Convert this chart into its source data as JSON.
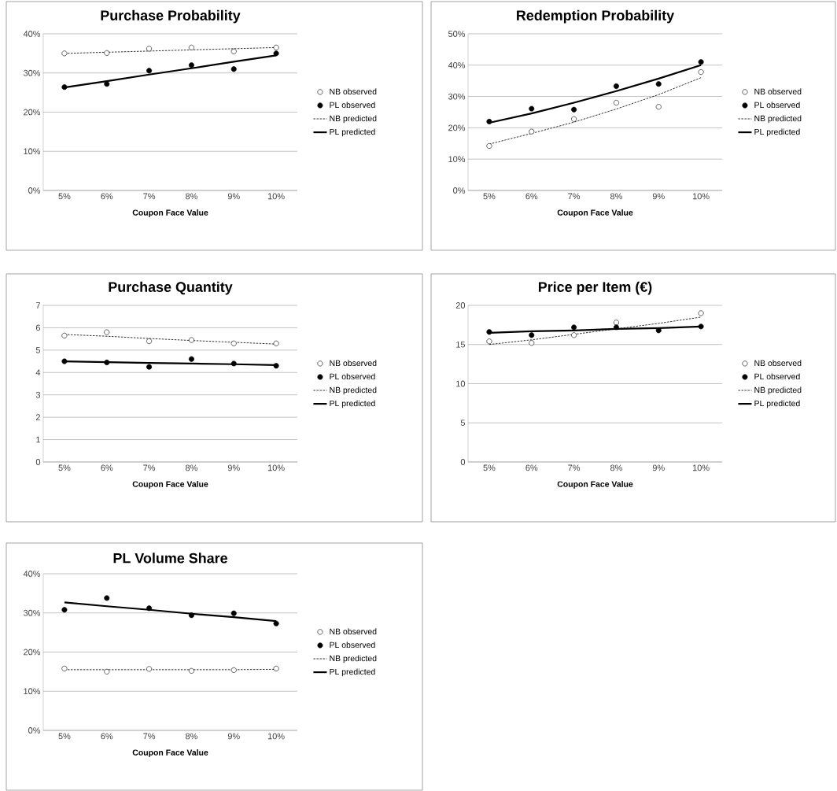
{
  "chart_data": [
    {
      "type": "line",
      "title": "Purchase Probability",
      "xlabel": "Coupon Face Value",
      "categories": [
        "5%",
        "6%",
        "7%",
        "8%",
        "9%",
        "10%"
      ],
      "ylim": [
        0,
        40
      ],
      "yticks": [
        {
          "value": 0,
          "label": "0%"
        },
        {
          "value": 10,
          "label": "10%"
        },
        {
          "value": 20,
          "label": "20%"
        },
        {
          "value": 30,
          "label": "30%"
        },
        {
          "value": 40,
          "label": "40%"
        }
      ],
      "grid": "y",
      "legend": "right",
      "series": [
        {
          "name": "NB observed",
          "type": "scatter",
          "marker": "circle",
          "color": "#ffffff",
          "values": [
            35,
            35.1,
            36.2,
            36.5,
            35.5,
            36.5
          ]
        },
        {
          "name": "PL observed",
          "type": "scatter",
          "marker": "circle",
          "color": "#000000",
          "values": [
            26.4,
            27.2,
            30.6,
            32,
            31,
            35
          ]
        },
        {
          "name": "NB predicted",
          "line_style": "dashed",
          "color": "#000000",
          "values": [
            35,
            35.3,
            35.6,
            35.9,
            36.2,
            36.5
          ]
        },
        {
          "name": "PL predicted",
          "line_style": "solid",
          "color": "#000000",
          "values": [
            26.3,
            27.9,
            29.6,
            31.2,
            32.9,
            34.5
          ]
        }
      ]
    },
    {
      "type": "line",
      "title": "Redemption Probability",
      "xlabel": "Coupon Face Value",
      "categories": [
        "5%",
        "6%",
        "7%",
        "8%",
        "9%",
        "10%"
      ],
      "ylim": [
        0,
        50
      ],
      "yticks": [
        {
          "value": 0,
          "label": "0%"
        },
        {
          "value": 10,
          "label": "10%"
        },
        {
          "value": 20,
          "label": "20%"
        },
        {
          "value": 30,
          "label": "30%"
        },
        {
          "value": 40,
          "label": "40%"
        },
        {
          "value": 50,
          "label": "50%"
        }
      ],
      "grid": "y",
      "legend": "right",
      "series": [
        {
          "name": "NB observed",
          "type": "scatter",
          "marker": "circle",
          "color": "#ffffff",
          "values": [
            14.2,
            18.8,
            22.8,
            28,
            26.7,
            37.8
          ]
        },
        {
          "name": "PL observed",
          "type": "scatter",
          "marker": "circle",
          "color": "#000000",
          "values": [
            22,
            26.1,
            25.8,
            33.3,
            34,
            41
          ]
        },
        {
          "name": "NB predicted",
          "line_style": "dashed",
          "color": "#000000",
          "values": [
            14.8,
            18.2,
            21.8,
            26,
            30.6,
            36
          ]
        },
        {
          "name": "PL predicted",
          "line_style": "solid",
          "color": "#000000",
          "values": [
            21.6,
            24.6,
            28,
            31.7,
            35.7,
            40
          ]
        }
      ]
    },
    {
      "type": "line",
      "title": "Purchase Quantity",
      "xlabel": "Coupon Face Value",
      "categories": [
        "5%",
        "6%",
        "7%",
        "8%",
        "9%",
        "10%"
      ],
      "ylim": [
        0,
        7
      ],
      "yticks": [
        0,
        1,
        2,
        3,
        4,
        5,
        6,
        7
      ],
      "grid": "y",
      "legend": "right",
      "series": [
        {
          "name": "NB observed",
          "type": "scatter",
          "marker": "circle",
          "color": "#ffffff",
          "values": [
            5.65,
            5.8,
            5.4,
            5.45,
            5.3,
            5.3
          ]
        },
        {
          "name": "PL observed",
          "type": "scatter",
          "marker": "circle",
          "color": "#000000",
          "values": [
            4.5,
            4.45,
            4.25,
            4.6,
            4.4,
            4.3
          ]
        },
        {
          "name": "NB predicted",
          "line_style": "dashed",
          "color": "#000000",
          "values": [
            5.7,
            5.62,
            5.52,
            5.43,
            5.35,
            5.27
          ]
        },
        {
          "name": "PL predicted",
          "line_style": "solid",
          "color": "#000000",
          "values": [
            4.5,
            4.46,
            4.43,
            4.4,
            4.37,
            4.33
          ]
        }
      ]
    },
    {
      "type": "line",
      "title": "Price per Item (€)",
      "xlabel": "Coupon Face Value",
      "categories": [
        "5%",
        "6%",
        "7%",
        "8%",
        "9%",
        "10%"
      ],
      "ylim": [
        0,
        20
      ],
      "yticks": [
        0,
        5,
        10,
        15,
        20
      ],
      "grid": "y",
      "legend": "right",
      "series": [
        {
          "name": "NB observed",
          "type": "scatter",
          "marker": "circle",
          "color": "#ffffff",
          "values": [
            15.4,
            15.2,
            16.2,
            17.8,
            null,
            19
          ]
        },
        {
          "name": "PL observed",
          "type": "scatter",
          "marker": "circle",
          "color": "#000000",
          "values": [
            16.6,
            16.2,
            17.2,
            17.2,
            16.8,
            17.3
          ]
        },
        {
          "name": "NB predicted",
          "line_style": "dashed",
          "color": "#000000",
          "values": [
            15,
            15.6,
            16.3,
            17,
            17.7,
            18.5
          ]
        },
        {
          "name": "PL predicted",
          "line_style": "solid",
          "color": "#000000",
          "values": [
            16.5,
            16.7,
            16.8,
            17,
            17.1,
            17.3
          ]
        }
      ]
    },
    {
      "type": "line",
      "title": "PL Volume Share",
      "xlabel": "Coupon Face Value",
      "categories": [
        "5%",
        "6%",
        "7%",
        "8%",
        "9%",
        "10%"
      ],
      "ylim": [
        0,
        40
      ],
      "yticks": [
        {
          "value": 0,
          "label": "0%"
        },
        {
          "value": 10,
          "label": "10%"
        },
        {
          "value": 20,
          "label": "20%"
        },
        {
          "value": 30,
          "label": "30%"
        },
        {
          "value": 40,
          "label": "40%"
        }
      ],
      "grid": "y",
      "legend": "right",
      "series": [
        {
          "name": "NB observed",
          "type": "scatter",
          "marker": "circle",
          "color": "#ffffff",
          "values": [
            15.8,
            15,
            15.7,
            15.2,
            15.4,
            15.8
          ]
        },
        {
          "name": "PL observed",
          "type": "scatter",
          "marker": "circle",
          "color": "#000000",
          "values": [
            30.8,
            33.8,
            31.2,
            29.4,
            29.9,
            27.3
          ]
        },
        {
          "name": "NB predicted",
          "line_style": "dashed",
          "color": "#000000",
          "values": [
            15.5,
            15.5,
            15.5,
            15.5,
            15.5,
            15.6
          ]
        },
        {
          "name": "PL predicted",
          "line_style": "solid",
          "color": "#000000",
          "values": [
            32.7,
            31.7,
            30.8,
            29.8,
            28.9,
            27.9
          ]
        }
      ]
    }
  ]
}
